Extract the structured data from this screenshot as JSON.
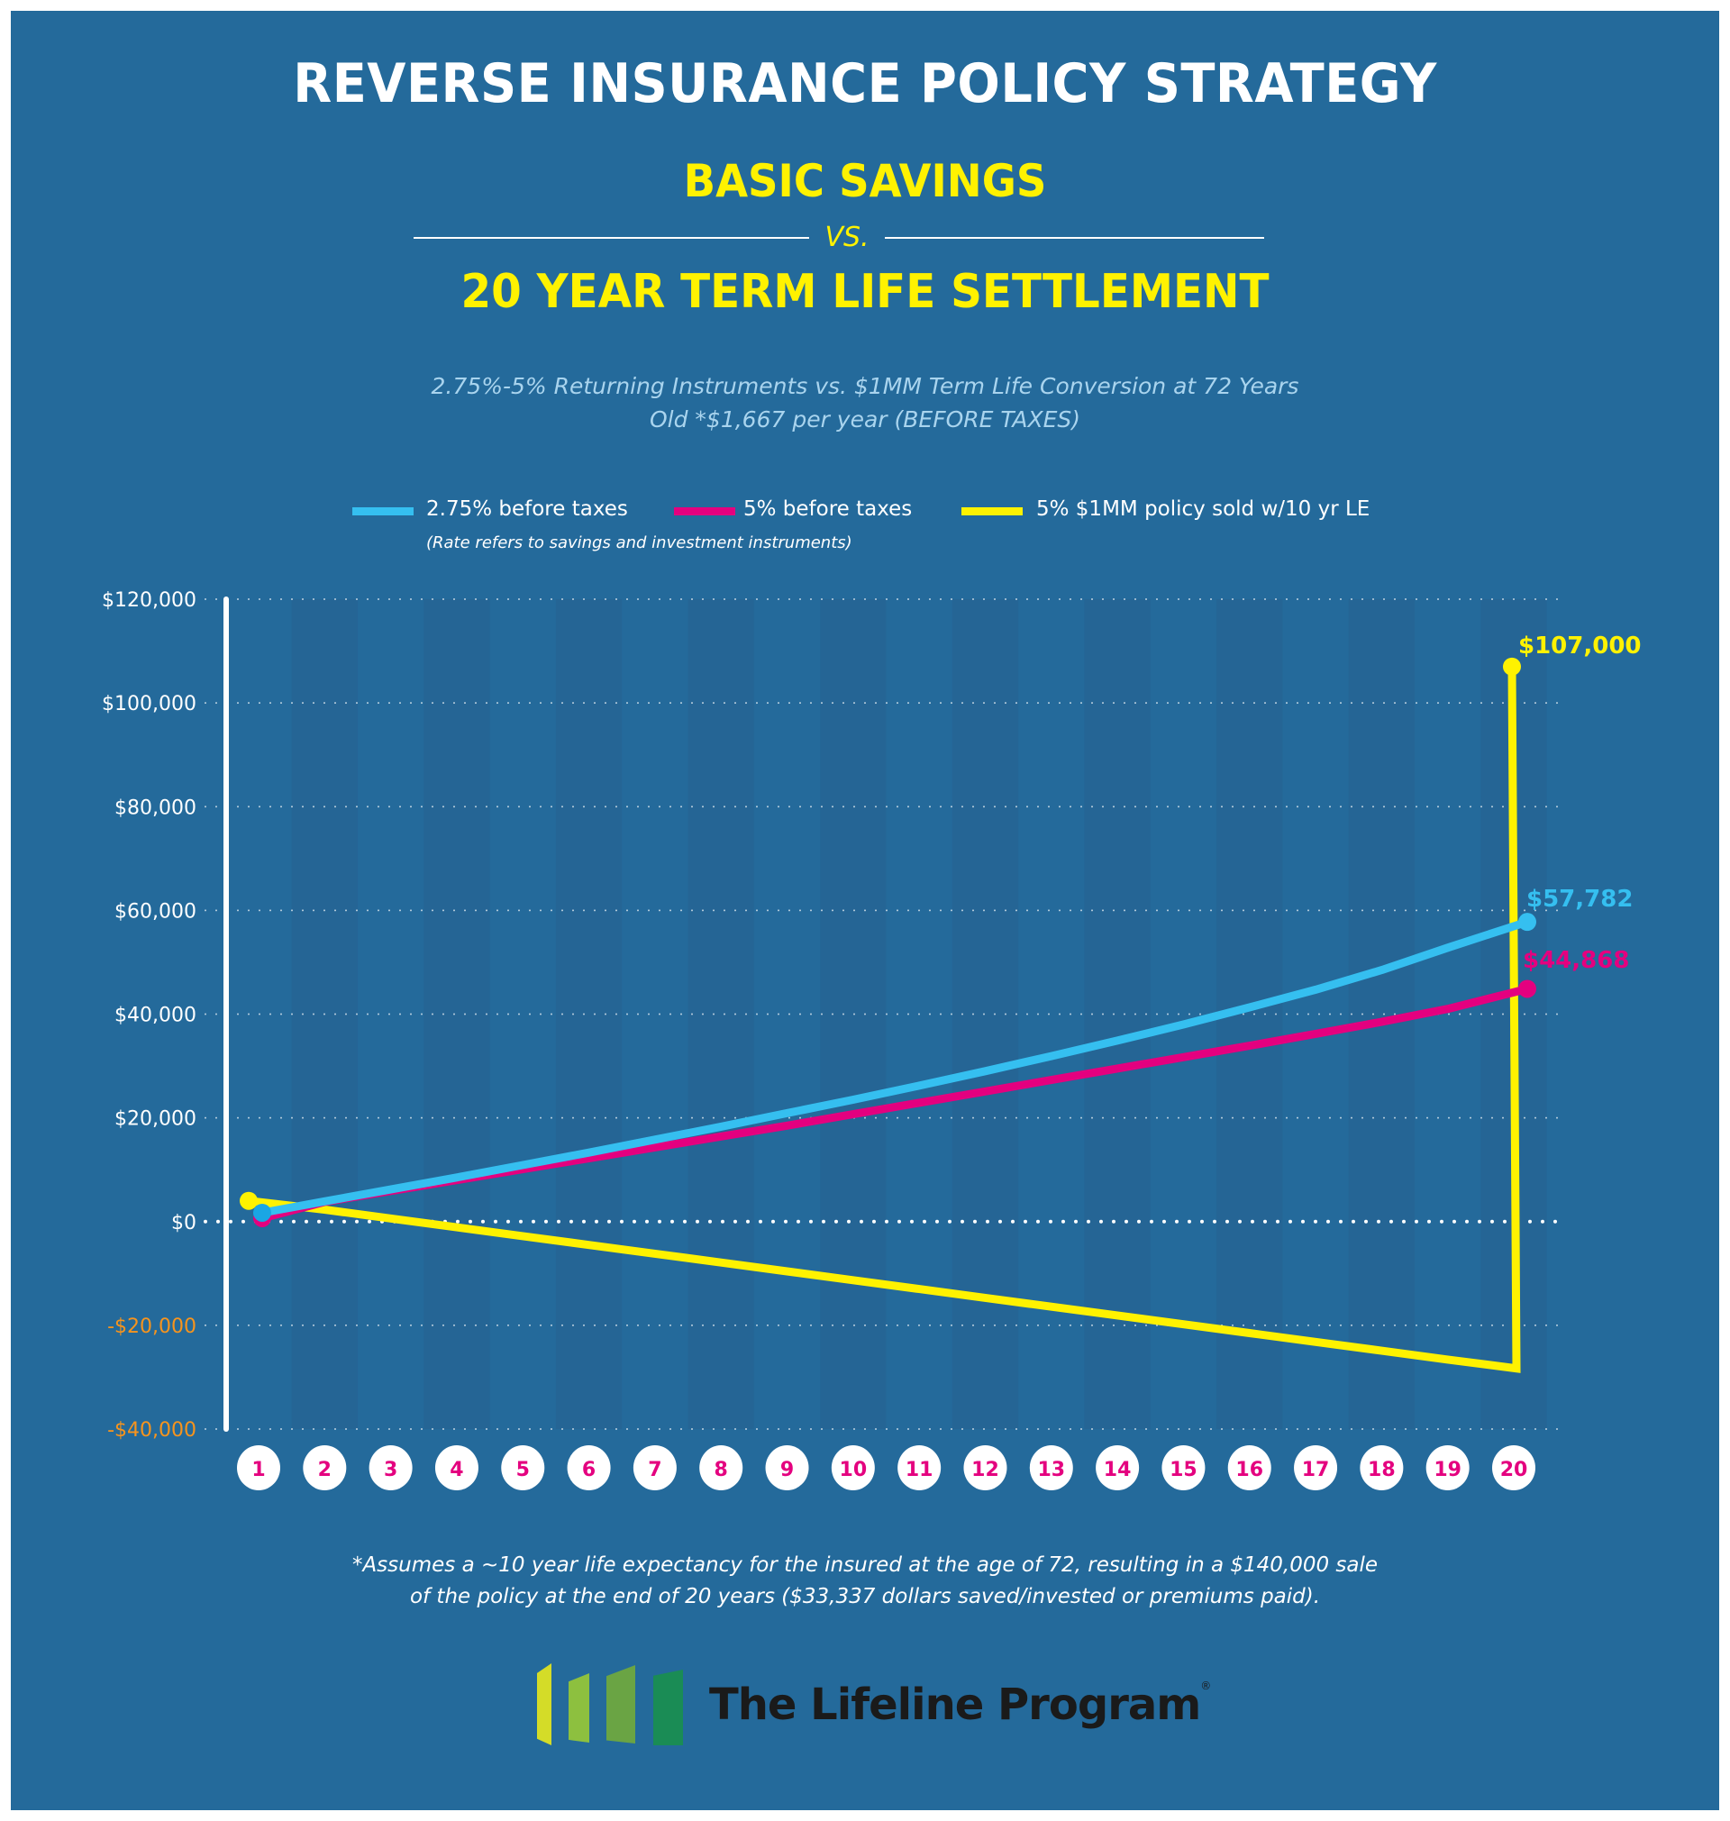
{
  "header": {
    "title": "REVERSE INSURANCE POLICY STRATEGY",
    "subtitle_top": "BASIC SAVINGS",
    "vs": "VS.",
    "subtitle_bottom": "20 YEAR TERM LIFE SETTLEMENT",
    "description_line1": "2.75%-5% Returning Instruments vs. $1MM Term Life Conversion at 72 Years",
    "description_line2": "Old *$1,667 per year (BEFORE TAXES)"
  },
  "legend": {
    "items": [
      {
        "label": "2.75% before taxes",
        "color": "#35bff0"
      },
      {
        "label": "5% before taxes",
        "color": "#e4007f"
      },
      {
        "label": "5% $1MM policy sold w/10 yr LE",
        "color": "#fff200"
      }
    ],
    "note": "(Rate refers to savings and investment instruments)"
  },
  "colors": {
    "background": "#246a9b",
    "stripe_dark": "#26618f",
    "axis": "#ffffff",
    "negative_tick": "#f7941d",
    "positive_tick": "#ffffff",
    "year_badge_text": "#e4007f",
    "year_badge_bg": "#ffffff"
  },
  "chart_data": {
    "type": "line",
    "title": "REVERSE INSURANCE POLICY STRATEGY",
    "xlabel": "",
    "ylabel": "",
    "x": [
      1,
      2,
      3,
      4,
      5,
      6,
      7,
      8,
      9,
      10,
      11,
      12,
      13,
      14,
      15,
      16,
      17,
      18,
      19,
      20
    ],
    "x_tick_labels": [
      "1",
      "2",
      "3",
      "4",
      "5",
      "6",
      "7",
      "8",
      "9",
      "10",
      "11",
      "12",
      "13",
      "14",
      "15",
      "16",
      "17",
      "18",
      "19",
      "20"
    ],
    "y_ticks": [
      120000,
      100000,
      80000,
      60000,
      40000,
      20000,
      0,
      -20000,
      -40000
    ],
    "y_tick_labels": [
      "$120,000",
      "$100,000",
      "$80,000",
      "$60,000",
      "$40,000",
      "$20,000",
      "$0",
      "-$20,000",
      "-$40,000"
    ],
    "ylim": [
      -40000,
      120000
    ],
    "grid": true,
    "legend_position": "top",
    "series": [
      {
        "name": "2.75% before taxes",
        "color": "#35bff0",
        "values": [
          1700,
          3900,
          6200,
          8500,
          10900,
          13300,
          15800,
          18300,
          20900,
          23500,
          26200,
          29000,
          31900,
          34900,
          38000,
          41300,
          44700,
          48500,
          52800,
          57782
        ],
        "end_label": "$57,782"
      },
      {
        "name": "5% before taxes",
        "color": "#e4007f",
        "values": [
          1700,
          3800,
          5900,
          8000,
          10100,
          12200,
          14300,
          16400,
          18500,
          20700,
          22900,
          25100,
          27300,
          29500,
          31700,
          33900,
          36200,
          38500,
          41000,
          44868
        ],
        "end_label": "$44,868"
      },
      {
        "name": "5% $1MM policy sold w/10 yr LE",
        "color": "#fff200",
        "values": [
          4000,
          2300,
          600,
          -1100,
          -2800,
          -4500,
          -6200,
          -7900,
          -9600,
          -11300,
          -13000,
          -14700,
          -16400,
          -18100,
          -19800,
          -21500,
          -23200,
          -24900,
          -26600,
          -28300
        ],
        "final_jump_value": 107000,
        "end_label": "$107,000"
      }
    ],
    "annotations": [
      "$107,000",
      "$57,782",
      "$44,868"
    ]
  },
  "footnote": {
    "line1": "*Assumes a ~10 year life expectancy for the insured at the age of 72, resulting in a $140,000 sale",
    "line2": "of the policy at the end of 20 years ($33,337 dollars saved/invested or premiums paid)."
  },
  "logo": {
    "text": "The Lifeline Program",
    "registered": "®",
    "bar_colors": [
      "#d4dc28",
      "#8dc03f",
      "#6aa444",
      "#1a8c55"
    ]
  }
}
